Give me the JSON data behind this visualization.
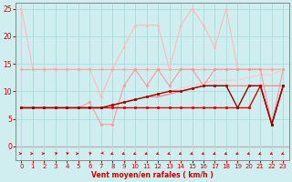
{
  "x": [
    0,
    1,
    2,
    3,
    4,
    5,
    6,
    7,
    8,
    9,
    10,
    11,
    12,
    13,
    14,
    15,
    16,
    17,
    18,
    19,
    20,
    21,
    22,
    23
  ],
  "series": [
    {
      "name": "very_light_pink_spiky",
      "y": [
        25,
        14,
        14,
        14,
        14,
        14,
        14,
        9,
        14,
        18,
        22,
        22,
        22,
        14,
        22,
        25,
        22,
        18,
        25,
        14,
        14,
        14,
        14,
        14
      ],
      "color": "#ffbbbb",
      "lw": 0.8,
      "marker": "s",
      "ms": 2.0,
      "zorder": 2
    },
    {
      "name": "medium_pink_flat14",
      "y": [
        14,
        14,
        14,
        14,
        14,
        14,
        14,
        14,
        14,
        14,
        14,
        14,
        14,
        14,
        14,
        14,
        14,
        14,
        14,
        14,
        14,
        14,
        14,
        14
      ],
      "color": "#ffaaaa",
      "lw": 0.8,
      "marker": "s",
      "ms": 2.0,
      "zorder": 2
    },
    {
      "name": "pink_low_dip",
      "y": [
        7,
        7,
        7,
        7,
        7,
        7,
        8,
        4,
        4,
        11,
        14,
        11,
        14,
        11,
        14,
        14,
        11,
        14,
        14,
        14,
        14,
        14,
        4,
        14
      ],
      "color": "#ff9999",
      "lw": 0.8,
      "marker": "s",
      "ms": 2.0,
      "zorder": 3
    },
    {
      "name": "light_rise_smooth",
      "y": [
        7,
        7,
        7,
        7,
        7,
        7,
        7,
        7,
        7.5,
        8,
        8.5,
        9,
        9.5,
        10,
        10.5,
        11,
        11.5,
        12,
        12,
        12,
        12.5,
        13,
        13,
        14
      ],
      "color": "#ffcccc",
      "lw": 1.0,
      "marker": null,
      "ms": 0,
      "zorder": 2
    },
    {
      "name": "darker_rise_smooth",
      "y": [
        7,
        7,
        7,
        7,
        7,
        7,
        7,
        7,
        7.5,
        8,
        8.5,
        9,
        9,
        9.5,
        10,
        10.5,
        11,
        11,
        11,
        11,
        11,
        11,
        11,
        11
      ],
      "color": "#ff8888",
      "lw": 1.0,
      "marker": null,
      "ms": 0,
      "zorder": 2
    },
    {
      "name": "red_flat_with_dip",
      "y": [
        7,
        7,
        7,
        7,
        7,
        7,
        7,
        7,
        7,
        7,
        7,
        7,
        7,
        7,
        7,
        7,
        7,
        7,
        7,
        7,
        7,
        11,
        4,
        11
      ],
      "color": "#dd0000",
      "lw": 1.0,
      "marker": "s",
      "ms": 2.0,
      "zorder": 4
    },
    {
      "name": "darkred_rise_dip",
      "y": [
        7,
        7,
        7,
        7,
        7,
        7,
        7,
        7,
        7.5,
        8,
        8.5,
        9,
        9.5,
        10,
        10,
        10.5,
        11,
        11,
        11,
        7,
        11,
        11,
        4,
        11
      ],
      "color": "#990000",
      "lw": 1.0,
      "marker": "s",
      "ms": 2.0,
      "zorder": 4
    }
  ],
  "arrow_angles": [
    0,
    0,
    0,
    45,
    45,
    0,
    45,
    -150,
    -135,
    -135,
    -135,
    -135,
    -135,
    -135,
    -135,
    -135,
    -135,
    -135,
    -135,
    -135,
    -135,
    -135,
    -135,
    -135
  ],
  "xlim": [
    -0.5,
    23.5
  ],
  "ylim": [
    -2.5,
    26
  ],
  "yticks": [
    0,
    5,
    10,
    15,
    20,
    25
  ],
  "xticks": [
    0,
    1,
    2,
    3,
    4,
    5,
    6,
    7,
    8,
    9,
    10,
    11,
    12,
    13,
    14,
    15,
    16,
    17,
    18,
    19,
    20,
    21,
    22,
    23
  ],
  "xlabel": "Vent moyen/en rafales ( km/h )",
  "bg_color": "#d0eef0",
  "grid_color": "#aadddd",
  "tick_color": "#cc0000",
  "label_color": "#cc0000",
  "axis_color": "#888888"
}
